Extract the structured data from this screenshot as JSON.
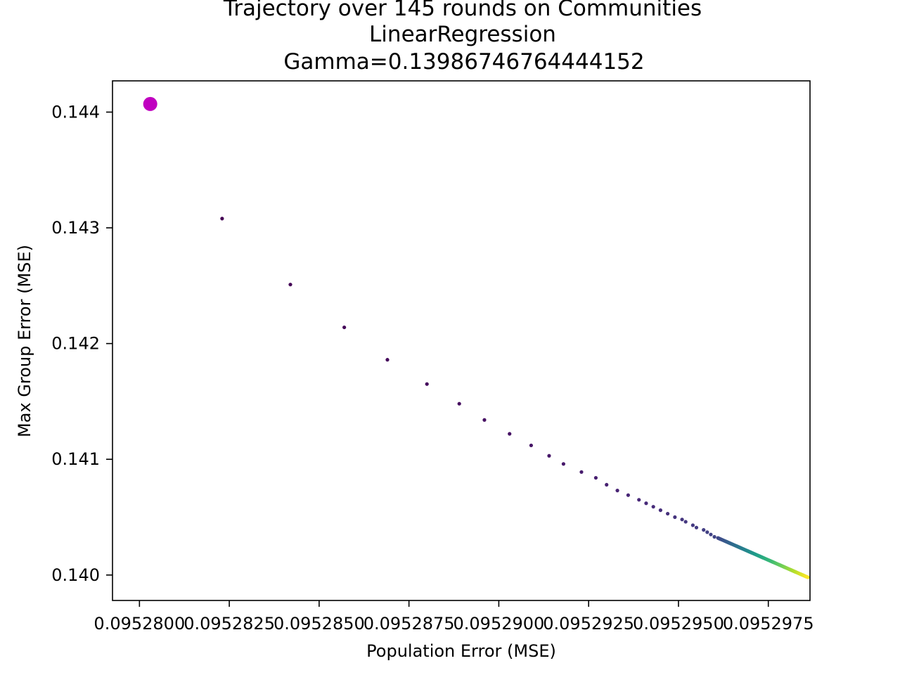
{
  "chart_data": {
    "type": "scatter",
    "title_lines": [
      "Trajectory over 145 rounds on Communities",
      "LinearRegression",
      "Gamma=0.13986746764444152"
    ],
    "xlabel": "Population Error (MSE)",
    "ylabel": "Max Group Error (MSE)",
    "xlim": [
      0.09527925,
      0.09529866
    ],
    "ylim": [
      0.13978,
      0.14427
    ],
    "x_ticks": [
      {
        "value": 0.09528,
        "label": "0.0952800"
      },
      {
        "value": 0.0952825,
        "label": "0.0952825"
      },
      {
        "value": 0.095285,
        "label": "0.0952850"
      },
      {
        "value": 0.0952875,
        "label": "0.0952875"
      },
      {
        "value": 0.09529,
        "label": "0.0952900"
      },
      {
        "value": 0.0952925,
        "label": "0.0952925"
      },
      {
        "value": 0.095295,
        "label": "0.0952950"
      },
      {
        "value": 0.0952975,
        "label": "0.0952975"
      }
    ],
    "y_ticks": [
      {
        "value": 0.14,
        "label": "0.140"
      },
      {
        "value": 0.141,
        "label": "0.141"
      },
      {
        "value": 0.142,
        "label": "0.142"
      },
      {
        "value": 0.143,
        "label": "0.143"
      },
      {
        "value": 0.144,
        "label": "0.144"
      }
    ],
    "grid": false,
    "colormap": "viridis",
    "start_point": {
      "x": 0.0952803,
      "y": 0.14407,
      "color": "#c000c0"
    },
    "points": [
      [
        0.0952823,
        0.14308
      ],
      [
        0.0952842,
        0.14251
      ],
      [
        0.0952857,
        0.14214
      ],
      [
        0.0952869,
        0.14186
      ],
      [
        0.095288,
        0.14165
      ],
      [
        0.0952889,
        0.14148
      ],
      [
        0.0952896,
        0.14134
      ],
      [
        0.0952903,
        0.14122
      ],
      [
        0.0952909,
        0.14112
      ],
      [
        0.0952914,
        0.14103
      ],
      [
        0.0952918,
        0.14096
      ],
      [
        0.0952923,
        0.14089
      ],
      [
        0.0952927,
        0.14084
      ],
      [
        0.095293,
        0.14078
      ],
      [
        0.0952933,
        0.14073
      ],
      [
        0.0952936,
        0.14069
      ],
      [
        0.0952939,
        0.14065
      ],
      [
        0.0952941,
        0.14062
      ],
      [
        0.0952943,
        0.14059
      ],
      [
        0.0952945,
        0.14056
      ],
      [
        0.0952947,
        0.14053
      ],
      [
        0.0952949,
        0.1405
      ],
      [
        0.0952951,
        0.14048
      ],
      [
        0.0952952,
        0.14046
      ],
      [
        0.0952954,
        0.14043
      ],
      [
        0.0952955,
        0.14041
      ],
      [
        0.0952957,
        0.14039
      ],
      [
        0.0952958,
        0.14037
      ],
      [
        0.0952959,
        0.14035
      ],
      [
        0.095296,
        0.14033
      ]
    ],
    "tail": {
      "x_start": 0.0952961,
      "x_end": 0.0952986,
      "y_start": 0.14032,
      "y_end": 0.13998,
      "count": 115
    }
  }
}
